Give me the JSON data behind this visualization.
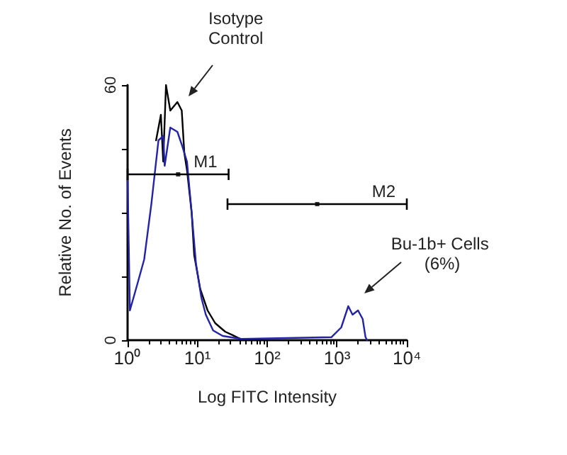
{
  "chart_data": {
    "type": "line",
    "xlabel": "Log FITC Intensity",
    "ylabel": "Relative No. of Events",
    "log": "x",
    "xlim": [
      1,
      10000
    ],
    "xticks": [
      {
        "value": 1,
        "label": "10⁰"
      },
      {
        "value": 10,
        "label": "10¹"
      },
      {
        "value": 100,
        "label": "10²"
      },
      {
        "value": 1000,
        "label": "10³"
      },
      {
        "value": 10000,
        "label": "10⁴"
      }
    ],
    "ylim": [
      0,
      60
    ],
    "yticks": [
      0,
      {
        "value": 15,
        "label": null
      },
      {
        "value": 30,
        "label": null
      },
      {
        "value": 45,
        "label": null
      },
      60
    ],
    "grid": false,
    "marker": "none",
    "line_style": "solid",
    "series": [
      {
        "color": "#000000",
        "x": [
          2.56,
          3.0,
          3.24,
          3.55,
          4.09,
          5.17,
          5.97,
          6.5,
          7.1,
          8.28,
          9,
          11,
          14,
          18,
          25,
          32,
          45
        ],
        "values": [
          47,
          53,
          42,
          60,
          54,
          56,
          54,
          44,
          40,
          30,
          20,
          12,
          7,
          4,
          2,
          1.2,
          0
        ]
      },
      {
        "color": "#2323a8",
        "x": [
          1,
          1.08,
          1.37,
          1.73,
          2.19,
          2.77,
          3.24,
          3.4,
          4.09,
          5.17,
          5.97,
          7.1,
          8.28,
          9.55,
          11.4,
          13.2,
          16.8,
          23,
          42.9,
          830,
          1150,
          1450,
          1670,
          2000,
          2330,
          2560,
          2700
        ],
        "values": [
          38,
          7,
          13,
          19,
          32,
          47,
          48,
          41,
          50,
          49,
          46,
          42,
          30,
          18,
          10,
          6,
          2.3,
          1,
          0.3,
          0.7,
          3,
          8,
          6,
          7,
          5,
          0.7,
          0
        ]
      },
      {
        "type": "scatter",
        "name": "M1",
        "color": "#000000",
        "marker": "square",
        "x": [
          5.3
        ],
        "values": [
          39
        ],
        "xerrors": [
          [
            1,
            28
          ]
        ]
      },
      {
        "type": "scatter",
        "name": "M2",
        "color": "#000000",
        "marker": "square",
        "x": [
          520
        ],
        "values": [
          32
        ],
        "xerrors": [
          [
            27,
            10000
          ]
        ]
      }
    ],
    "annotations": [
      "Isotype Control",
      "Bu-1b+ Cells (6%)"
    ]
  }
}
